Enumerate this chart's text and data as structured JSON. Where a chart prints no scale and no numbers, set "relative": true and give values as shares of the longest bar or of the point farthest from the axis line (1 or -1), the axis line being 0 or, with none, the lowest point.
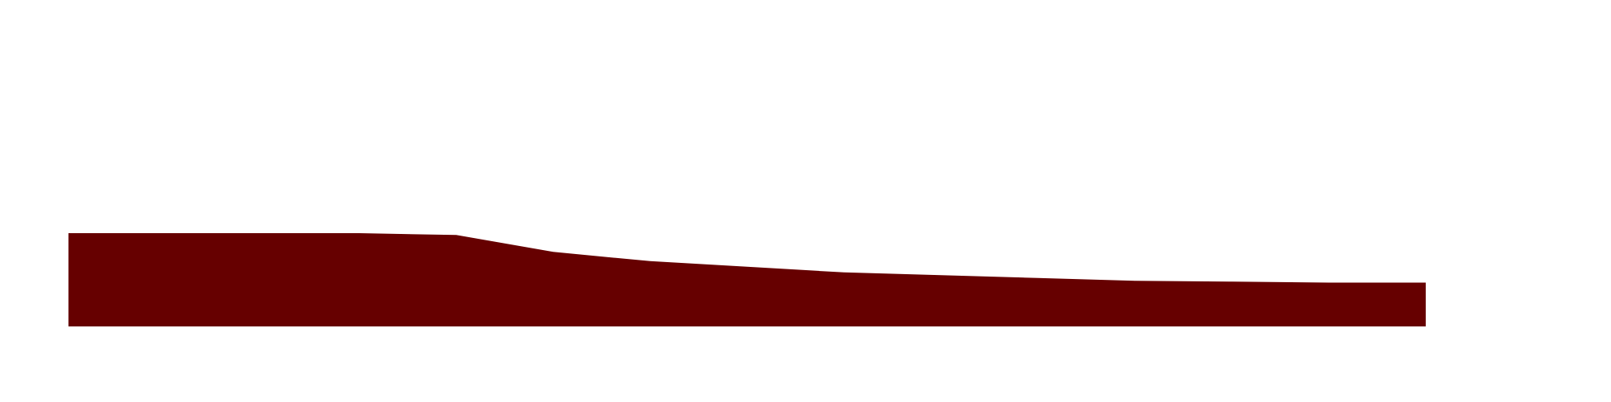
{
  "chart_data": {
    "type": "area",
    "relative": true,
    "color": "#660000",
    "categories": [
      null,
      null,
      null,
      null,
      null,
      null,
      null,
      null,
      null,
      null,
      null,
      null,
      null,
      null,
      null
    ],
    "values": [
      1,
      1,
      1,
      1,
      0.98,
      0.8,
      0.7,
      0.64,
      0.58,
      0.55,
      0.52,
      0.49,
      0.48,
      0.47,
      0.47
    ]
  }
}
